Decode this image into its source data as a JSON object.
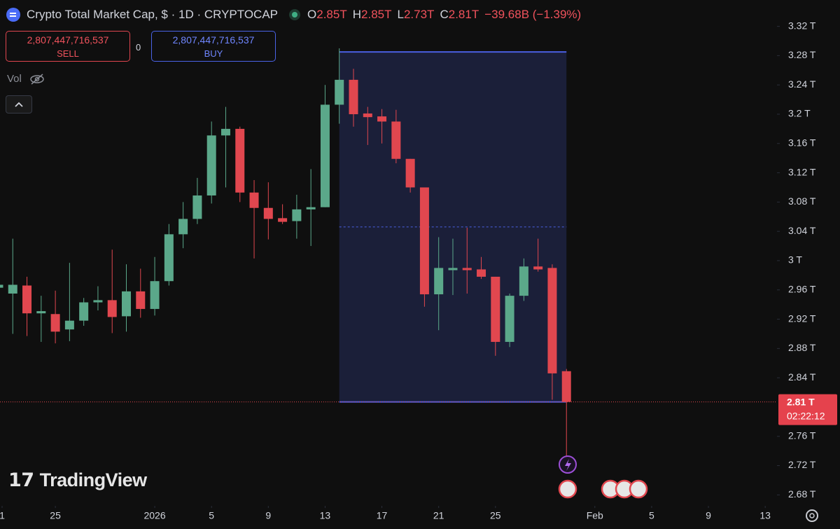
{
  "header": {
    "title": "Crypto Total Market Cap, $ · 1D · CRYPTOCAP",
    "ohlc": [
      {
        "key": "O",
        "value": "2.85T"
      },
      {
        "key": "H",
        "value": "2.85T"
      },
      {
        "key": "L",
        "value": "2.73T"
      },
      {
        "key": "C",
        "value": "2.81T"
      }
    ],
    "change": "−39.68B (−1.39%)"
  },
  "trade": {
    "sell_price": "2,807,447,716,537",
    "sell_label": "SELL",
    "spread": "0",
    "buy_price": "2,807,447,716,537",
    "buy_label": "BUY"
  },
  "volume_label": "Vol",
  "logo": "TradingView",
  "price_tag": {
    "price": "2.81 T",
    "countdown": "02:22:12"
  },
  "chart_data": {
    "type": "candlestick",
    "up_color": "#5ba88a",
    "down_color": "#e1474f",
    "x": [
      0,
      1,
      2,
      3,
      4,
      5,
      6,
      7,
      8,
      9,
      10,
      11,
      12,
      13,
      14,
      15,
      16,
      17,
      18,
      19,
      20,
      21,
      22,
      23,
      24,
      25,
      26,
      27,
      28,
      29,
      30,
      31,
      32,
      33,
      34,
      35,
      36,
      37,
      38,
      39,
      40
    ],
    "open": [
      2.963,
      2.955,
      2.966,
      2.928,
      2.927,
      2.906,
      2.918,
      2.943,
      2.946,
      2.924,
      2.958,
      2.934,
      2.972,
      3.036,
      3.057,
      3.089,
      3.171,
      3.18,
      3.093,
      3.072,
      3.058,
      3.054,
      3.07,
      3.073,
      3.213,
      3.247,
      3.201,
      3.197,
      3.19,
      3.139,
      3.1,
      2.954,
      2.987,
      2.99,
      2.988,
      2.978,
      2.889,
      2.952,
      2.992,
      2.99,
      2.849
    ],
    "high": [
      2.968,
      3.03,
      2.978,
      2.952,
      2.959,
      2.997,
      2.949,
      2.965,
      3.015,
      2.995,
      2.989,
      3.005,
      3.05,
      3.08,
      3.113,
      3.19,
      3.21,
      3.183,
      3.11,
      3.107,
      3.077,
      3.09,
      3.125,
      3.24,
      3.29,
      3.262,
      3.21,
      3.207,
      3.206,
      3.139,
      3.1,
      3.032,
      3.03,
      3.045,
      3.005,
      2.978,
      2.955,
      3.003,
      3.03,
      2.995,
      2.852
    ],
    "low": [
      2.962,
      2.9,
      2.897,
      2.889,
      2.887,
      2.89,
      2.911,
      2.932,
      2.901,
      2.903,
      2.922,
      2.925,
      2.966,
      3.017,
      3.05,
      3.078,
      3.1,
      3.08,
      3.003,
      3.029,
      3.05,
      3.03,
      3.02,
      3.073,
      3.187,
      3.183,
      3.158,
      3.16,
      3.133,
      3.093,
      2.937,
      2.905,
      2.953,
      2.955,
      2.975,
      2.87,
      2.882,
      2.945,
      2.985,
      2.81,
      2.733
    ],
    "close": [
      2.967,
      2.967,
      2.928,
      2.931,
      2.903,
      2.918,
      2.943,
      2.946,
      2.923,
      2.958,
      2.934,
      2.972,
      3.036,
      3.057,
      3.089,
      3.171,
      3.18,
      3.093,
      3.072,
      3.057,
      3.053,
      3.07,
      3.073,
      3.213,
      3.247,
      3.2,
      3.196,
      3.19,
      3.139,
      3.1,
      2.954,
      2.99,
      2.99,
      2.987,
      2.978,
      2.889,
      2.952,
      2.992,
      2.988,
      2.846,
      2.807
    ],
    "xlim": [
      0.1,
      54.83
    ],
    "xticks": [
      {
        "value": 0,
        "label": "1"
      },
      {
        "value": 4,
        "label": "25"
      },
      {
        "value": 11,
        "label": "2026"
      },
      {
        "value": 15,
        "label": "5"
      },
      {
        "value": 19,
        "label": "9"
      },
      {
        "value": 23,
        "label": "13"
      },
      {
        "value": 27,
        "label": "17"
      },
      {
        "value": 31,
        "label": "21"
      },
      {
        "value": 35,
        "label": "25"
      },
      {
        "value": 42,
        "label": "Feb"
      },
      {
        "value": 46,
        "label": "5"
      },
      {
        "value": 50,
        "label": "9"
      },
      {
        "value": 54,
        "label": "13"
      }
    ],
    "ylim": [
      2.665,
      3.356
    ],
    "yticks": [
      {
        "value": 2.68,
        "label": "2.68 T"
      },
      {
        "value": 2.72,
        "label": "2.72 T"
      },
      {
        "value": 2.76,
        "label": "2.76 T"
      },
      {
        "value": 2.84,
        "label": "2.84 T"
      },
      {
        "value": 2.88,
        "label": "2.88 T"
      },
      {
        "value": 2.92,
        "label": "2.92 T"
      },
      {
        "value": 2.96,
        "label": "2.96 T"
      },
      {
        "value": 3,
        "label": "3 T"
      },
      {
        "value": 3.04,
        "label": "3.04 T"
      },
      {
        "value": 3.08,
        "label": "3.08 T"
      },
      {
        "value": 3.12,
        "label": "3.12 T"
      },
      {
        "value": 3.16,
        "label": "3.16 T"
      },
      {
        "value": 3.2,
        "label": "3.2 T"
      },
      {
        "value": 3.24,
        "label": "3.24 T"
      },
      {
        "value": 3.28,
        "label": "3.28 T"
      },
      {
        "value": 3.32,
        "label": "3.32 T"
      }
    ],
    "last_price": 2.807,
    "range_box": {
      "x_start": 24,
      "x_end": 40,
      "top": 3.285,
      "bottom": 2.807,
      "color": "#4a5fe0"
    }
  }
}
